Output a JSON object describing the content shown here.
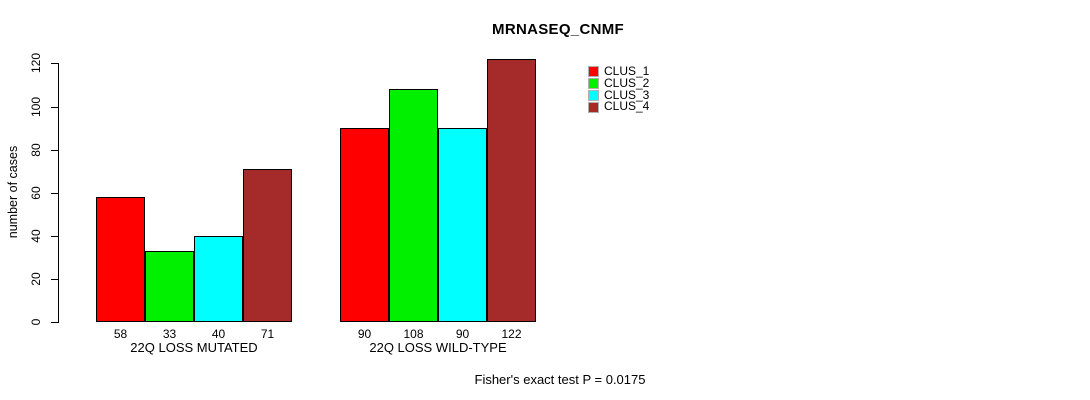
{
  "title": "MRNASEQ_CNMF",
  "chart_data": {
    "type": "bar",
    "title": "MRNASEQ_CNMF",
    "xlabel": "",
    "ylabel": "number of cases",
    "ylim": [
      0,
      120
    ],
    "yticks": [
      0,
      20,
      40,
      60,
      80,
      100,
      120
    ],
    "grid": false,
    "legend_position": "top-right",
    "categories": [
      "22Q LOSS MUTATED",
      "22Q LOSS WILD-TYPE"
    ],
    "series": [
      {
        "name": "CLUS_1",
        "color": "#ff0000",
        "values": [
          58,
          90
        ]
      },
      {
        "name": "CLUS_2",
        "color": "#00f000",
        "values": [
          33,
          108
        ]
      },
      {
        "name": "CLUS_3",
        "color": "#00ffff",
        "values": [
          40,
          90
        ]
      },
      {
        "name": "CLUS_4",
        "color": "#a52a2a",
        "values": [
          71,
          122
        ]
      }
    ],
    "bar_value_labels": [
      [
        "58",
        "33",
        "40",
        "71"
      ],
      [
        "90",
        "108",
        "90",
        "122"
      ]
    ],
    "annotation": "Fisher's exact test P = 0.0175"
  }
}
